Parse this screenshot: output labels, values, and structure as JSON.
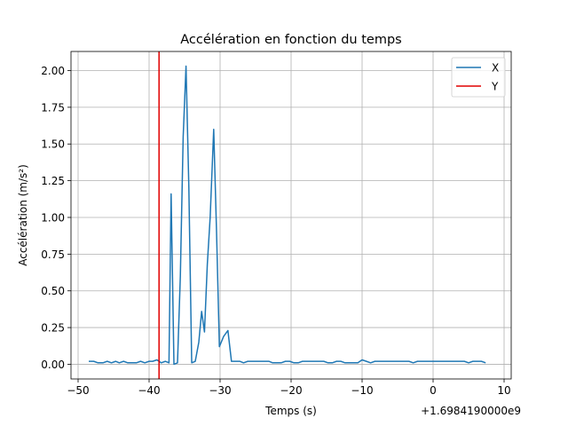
{
  "chart_data": {
    "type": "line",
    "title": "Accélération en fonction du temps",
    "xlabel": "Temps (s)",
    "ylabel": "Accélération (m/s²)",
    "x_offset_label": "+1.6984190000e9",
    "xlim": [
      -51,
      11
    ],
    "ylim": [
      -0.1,
      2.13
    ],
    "x_ticks": [
      -50,
      -40,
      -30,
      -20,
      -10,
      0,
      10
    ],
    "x_tick_labels": [
      "−50",
      "−40",
      "−30",
      "−20",
      "−10",
      "0",
      "10"
    ],
    "y_ticks": [
      0,
      0.25,
      0.5,
      0.75,
      1.0,
      1.25,
      1.5,
      1.75,
      2.0
    ],
    "y_tick_labels": [
      "0.00",
      "0.25",
      "0.50",
      "0.75",
      "1.00",
      "1.25",
      "1.50",
      "1.75",
      "2.00"
    ],
    "grid": true,
    "legend_position": "top-right",
    "series": [
      {
        "name": "X",
        "color": "#1f77b4",
        "points": [
          [
            -48.5,
            0.02
          ],
          [
            -47.8,
            0.02
          ],
          [
            -47.2,
            0.01
          ],
          [
            -46.5,
            0.01
          ],
          [
            -45.9,
            0.02
          ],
          [
            -45.3,
            0.01
          ],
          [
            -44.7,
            0.02
          ],
          [
            -44.2,
            0.01
          ],
          [
            -43.6,
            0.02
          ],
          [
            -43.0,
            0.01
          ],
          [
            -42.4,
            0.01
          ],
          [
            -41.8,
            0.01
          ],
          [
            -41.2,
            0.02
          ],
          [
            -40.6,
            0.01
          ],
          [
            -40.0,
            0.02
          ],
          [
            -39.5,
            0.02
          ],
          [
            -38.9,
            0.03
          ],
          [
            -38.3,
            0.01
          ],
          [
            -37.7,
            0.02
          ],
          [
            -37.2,
            0.01
          ],
          [
            -36.9,
            1.16
          ],
          [
            -36.5,
            0.0
          ],
          [
            -36.0,
            0.01
          ],
          [
            -35.6,
            0.6
          ],
          [
            -35.2,
            1.55
          ],
          [
            -34.8,
            2.03
          ],
          [
            -34.4,
            1.2
          ],
          [
            -34.0,
            0.01
          ],
          [
            -33.5,
            0.02
          ],
          [
            -33.0,
            0.15
          ],
          [
            -32.6,
            0.36
          ],
          [
            -32.2,
            0.22
          ],
          [
            -31.8,
            0.68
          ],
          [
            -31.4,
            1.0
          ],
          [
            -30.9,
            1.6
          ],
          [
            -30.5,
            0.9
          ],
          [
            -30.1,
            0.12
          ],
          [
            -29.5,
            0.19
          ],
          [
            -28.9,
            0.23
          ],
          [
            -28.4,
            0.02
          ],
          [
            -27.8,
            0.02
          ],
          [
            -27.2,
            0.02
          ],
          [
            -26.7,
            0.01
          ],
          [
            -26.1,
            0.02
          ],
          [
            -25.5,
            0.02
          ],
          [
            -24.9,
            0.02
          ],
          [
            -24.3,
            0.02
          ],
          [
            -23.7,
            0.02
          ],
          [
            -23.1,
            0.02
          ],
          [
            -22.6,
            0.01
          ],
          [
            -22.0,
            0.01
          ],
          [
            -21.4,
            0.01
          ],
          [
            -20.8,
            0.02
          ],
          [
            -20.2,
            0.02
          ],
          [
            -19.6,
            0.01
          ],
          [
            -19.0,
            0.01
          ],
          [
            -18.4,
            0.02
          ],
          [
            -17.8,
            0.02
          ],
          [
            -17.2,
            0.02
          ],
          [
            -16.6,
            0.02
          ],
          [
            -16.0,
            0.02
          ],
          [
            -15.4,
            0.02
          ],
          [
            -14.8,
            0.01
          ],
          [
            -14.2,
            0.01
          ],
          [
            -13.6,
            0.02
          ],
          [
            -13.0,
            0.02
          ],
          [
            -12.4,
            0.01
          ],
          [
            -11.8,
            0.01
          ],
          [
            -11.2,
            0.01
          ],
          [
            -10.6,
            0.01
          ],
          [
            -10.0,
            0.03
          ],
          [
            -9.4,
            0.02
          ],
          [
            -8.8,
            0.01
          ],
          [
            -8.2,
            0.02
          ],
          [
            -7.6,
            0.02
          ],
          [
            -7.0,
            0.02
          ],
          [
            -6.4,
            0.02
          ],
          [
            -5.8,
            0.02
          ],
          [
            -5.2,
            0.02
          ],
          [
            -4.6,
            0.02
          ],
          [
            -4.0,
            0.02
          ],
          [
            -3.4,
            0.02
          ],
          [
            -2.8,
            0.01
          ],
          [
            -2.2,
            0.02
          ],
          [
            -1.6,
            0.02
          ],
          [
            -1.0,
            0.02
          ],
          [
            -0.4,
            0.02
          ],
          [
            0.2,
            0.02
          ],
          [
            0.8,
            0.02
          ],
          [
            1.4,
            0.02
          ],
          [
            2.0,
            0.02
          ],
          [
            2.6,
            0.02
          ],
          [
            3.2,
            0.02
          ],
          [
            3.8,
            0.02
          ],
          [
            4.4,
            0.02
          ],
          [
            5.0,
            0.01
          ],
          [
            5.6,
            0.02
          ],
          [
            6.2,
            0.02
          ],
          [
            6.8,
            0.02
          ],
          [
            7.4,
            0.01
          ]
        ]
      },
      {
        "name": "Y",
        "color": "#e00000",
        "points": [
          [
            -38.6,
            -0.1
          ],
          [
            -38.6,
            2.13
          ]
        ]
      }
    ]
  }
}
